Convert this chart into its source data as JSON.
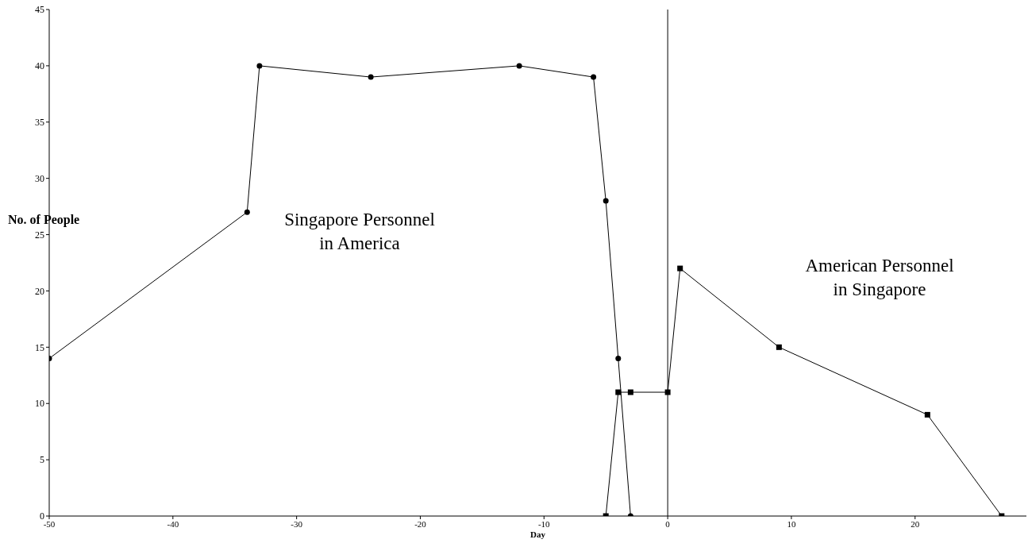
{
  "chart_data": {
    "type": "line",
    "xlabel": "Day",
    "ylabel": "No. of People",
    "xlim": [
      -50,
      29
    ],
    "xticks": [
      -50,
      -40,
      -30,
      -20,
      -10,
      0,
      10,
      20
    ],
    "ylim": [
      0,
      45
    ],
    "yticks": [
      0,
      5,
      10,
      15,
      20,
      25,
      30,
      35,
      40,
      45
    ],
    "line_style": "solid",
    "ref_lines": [
      {
        "axis": "x",
        "value": 0,
        "color": "#000000"
      }
    ],
    "series": [
      {
        "name": "Singapore Personnel\nin America",
        "color": "#000000",
        "marker": "circle",
        "x": [
          -50,
          -34,
          -33,
          -24,
          -12,
          -6,
          -5,
          -4,
          -3
        ],
        "values": [
          14,
          27,
          40,
          39,
          40,
          39,
          28,
          14,
          0
        ]
      },
      {
        "name": "American Personnel\nin Singapore",
        "color": "#000000",
        "marker": "square",
        "x": [
          -5,
          -4,
          -3,
          0,
          1,
          9,
          21,
          27
        ],
        "values": [
          0,
          11,
          11,
          11,
          22,
          15,
          9,
          0
        ]
      }
    ]
  }
}
